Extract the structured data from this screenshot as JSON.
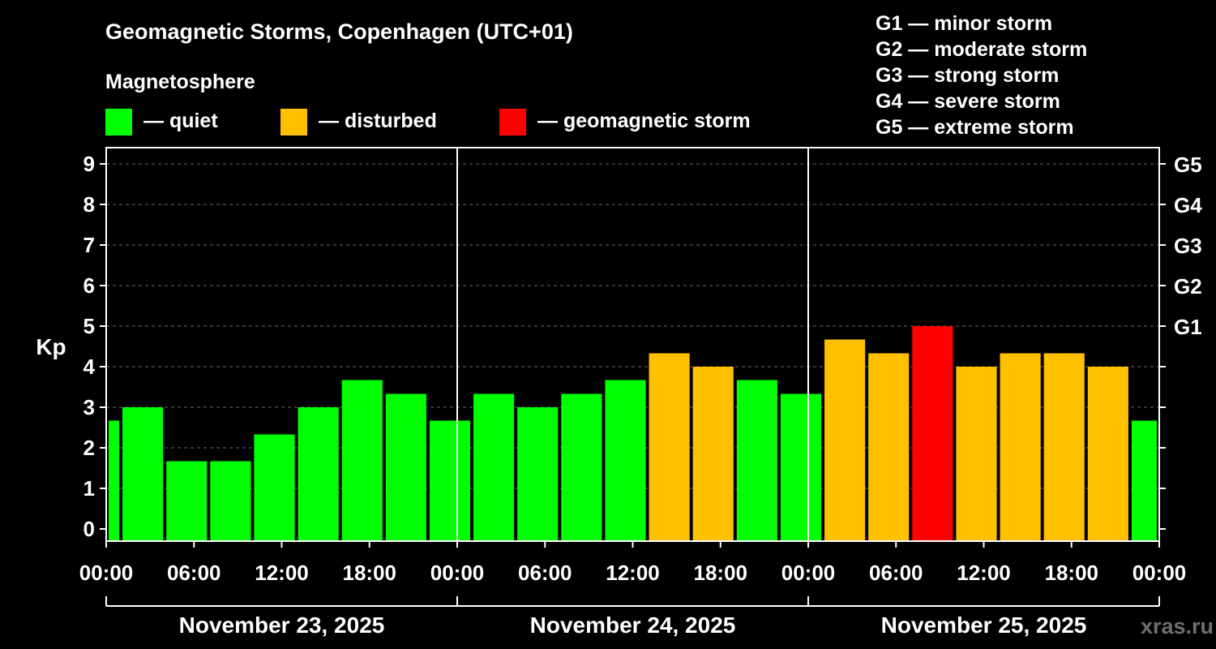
{
  "chart_data": {
    "type": "bar",
    "title": "Geomagnetic Storms, Copenhagen (UTC+01)",
    "ylabel": "Kp",
    "ylim": [
      0,
      9
    ],
    "yticks": [
      "0",
      "1",
      "2",
      "3",
      "4",
      "5",
      "6",
      "7",
      "8",
      "9"
    ],
    "right_ticks": [
      {
        "kp": 5,
        "label": "G1"
      },
      {
        "kp": 6,
        "label": "G2"
      },
      {
        "kp": 7,
        "label": "G3"
      },
      {
        "kp": 8,
        "label": "G4"
      },
      {
        "kp": 9,
        "label": "G5"
      }
    ],
    "x_range_hours": [
      0,
      72
    ],
    "x_tick_labels": [
      "00:00",
      "06:00",
      "12:00",
      "18:00",
      "00:00",
      "06:00",
      "12:00",
      "18:00",
      "00:00",
      "06:00",
      "12:00",
      "18:00",
      "00:00"
    ],
    "days": [
      "November 23, 2025",
      "November 24, 2025",
      "November 25, 2025"
    ],
    "day_boundaries_hours": [
      24,
      48
    ],
    "grid": true,
    "legend": {
      "title": "Magnetosphere",
      "items": [
        {
          "key": "quiet",
          "label": "— quiet",
          "color": "#00ff00"
        },
        {
          "key": "disturbed",
          "label": "— disturbed",
          "color": "#ffc000"
        },
        {
          "key": "storm",
          "label": "— geomagnetic storm",
          "color": "#ff0000"
        }
      ]
    },
    "storm_scale": [
      "G1 — minor storm",
      "G2 — moderate storm",
      "G3 — strong storm",
      "G4 — severe storm",
      "G5 — extreme storm"
    ],
    "bars": [
      {
        "start": -1,
        "end": 1,
        "kp": 2.67,
        "level": "quiet"
      },
      {
        "start": 1,
        "end": 4,
        "kp": 3.0,
        "level": "quiet"
      },
      {
        "start": 4,
        "end": 7,
        "kp": 1.67,
        "level": "quiet"
      },
      {
        "start": 7,
        "end": 10,
        "kp": 1.67,
        "level": "quiet"
      },
      {
        "start": 10,
        "end": 13,
        "kp": 2.33,
        "level": "quiet"
      },
      {
        "start": 13,
        "end": 16,
        "kp": 3.0,
        "level": "quiet"
      },
      {
        "start": 16,
        "end": 19,
        "kp": 3.67,
        "level": "quiet"
      },
      {
        "start": 19,
        "end": 22,
        "kp": 3.33,
        "level": "quiet"
      },
      {
        "start": 22,
        "end": 25,
        "kp": 2.67,
        "level": "quiet"
      },
      {
        "start": 25,
        "end": 28,
        "kp": 3.33,
        "level": "quiet"
      },
      {
        "start": 28,
        "end": 31,
        "kp": 3.0,
        "level": "quiet"
      },
      {
        "start": 31,
        "end": 34,
        "kp": 3.33,
        "level": "quiet"
      },
      {
        "start": 34,
        "end": 37,
        "kp": 3.67,
        "level": "quiet"
      },
      {
        "start": 37,
        "end": 40,
        "kp": 4.33,
        "level": "disturbed"
      },
      {
        "start": 40,
        "end": 43,
        "kp": 4.0,
        "level": "disturbed"
      },
      {
        "start": 43,
        "end": 46,
        "kp": 3.67,
        "level": "quiet"
      },
      {
        "start": 46,
        "end": 49,
        "kp": 3.33,
        "level": "quiet"
      },
      {
        "start": 49,
        "end": 52,
        "kp": 4.67,
        "level": "disturbed"
      },
      {
        "start": 52,
        "end": 55,
        "kp": 4.33,
        "level": "disturbed"
      },
      {
        "start": 55,
        "end": 58,
        "kp": 5.0,
        "level": "storm"
      },
      {
        "start": 58,
        "end": 61,
        "kp": 4.0,
        "level": "disturbed"
      },
      {
        "start": 61,
        "end": 64,
        "kp": 4.33,
        "level": "disturbed"
      },
      {
        "start": 64,
        "end": 67,
        "kp": 4.33,
        "level": "disturbed"
      },
      {
        "start": 67,
        "end": 70,
        "kp": 4.0,
        "level": "disturbed"
      },
      {
        "start": 70,
        "end": 73,
        "kp": 2.67,
        "level": "quiet"
      }
    ]
  },
  "watermark": "xras.ru"
}
